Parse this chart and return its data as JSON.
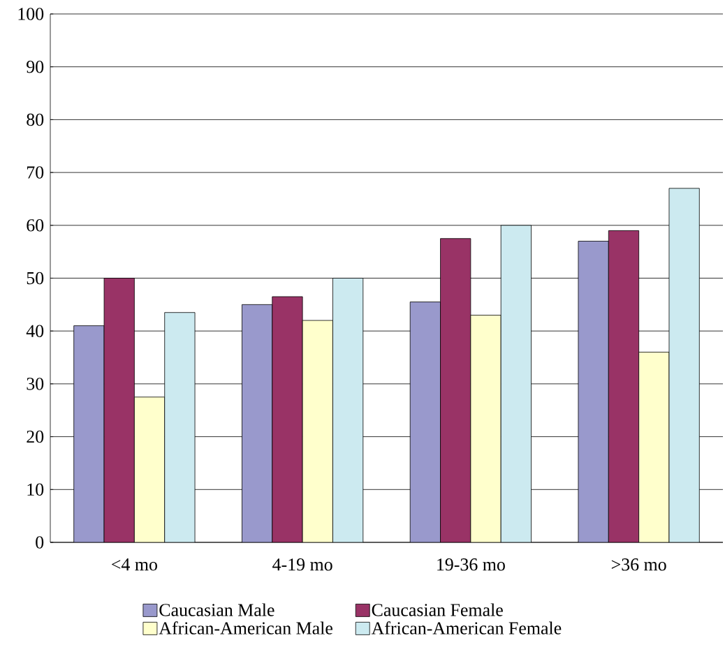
{
  "chart_data": {
    "type": "bar",
    "categories": [
      "<4 mo",
      "4-19 mo",
      "19-36 mo",
      ">36 mo"
    ],
    "series": [
      {
        "name": "Caucasian Male",
        "color": "#9999cc",
        "values": [
          41,
          45,
          45.5,
          57
        ]
      },
      {
        "name": "Caucasian Female",
        "color": "#993366",
        "values": [
          50,
          46.5,
          57.5,
          59
        ]
      },
      {
        "name": "African-American Male",
        "color": "#ffffcc",
        "values": [
          27.5,
          42,
          43,
          36
        ]
      },
      {
        "name": "African-American Female",
        "color": "#cceaf0",
        "values": [
          43.5,
          50,
          60,
          67
        ]
      }
    ],
    "ylim": [
      0,
      100
    ],
    "yticks": [
      0,
      10,
      20,
      30,
      40,
      50,
      60,
      70,
      80,
      90,
      100
    ],
    "grid": "y",
    "legend": "bottom"
  }
}
